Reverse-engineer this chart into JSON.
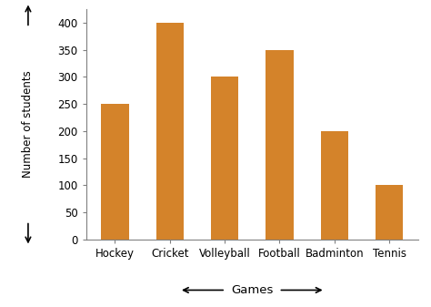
{
  "categories": [
    "Hockey",
    "Cricket",
    "Volleyball",
    "Football",
    "Badminton",
    "Tennis"
  ],
  "values": [
    250,
    400,
    300,
    350,
    200,
    100
  ],
  "bar_color": "#D4832A",
  "xlabel": "Games",
  "ylabel": "Number of students",
  "ylim": [
    0,
    425
  ],
  "yticks": [
    0,
    50,
    100,
    150,
    200,
    250,
    300,
    350,
    400
  ],
  "background_color": "#ffffff",
  "bar_width": 0.5
}
